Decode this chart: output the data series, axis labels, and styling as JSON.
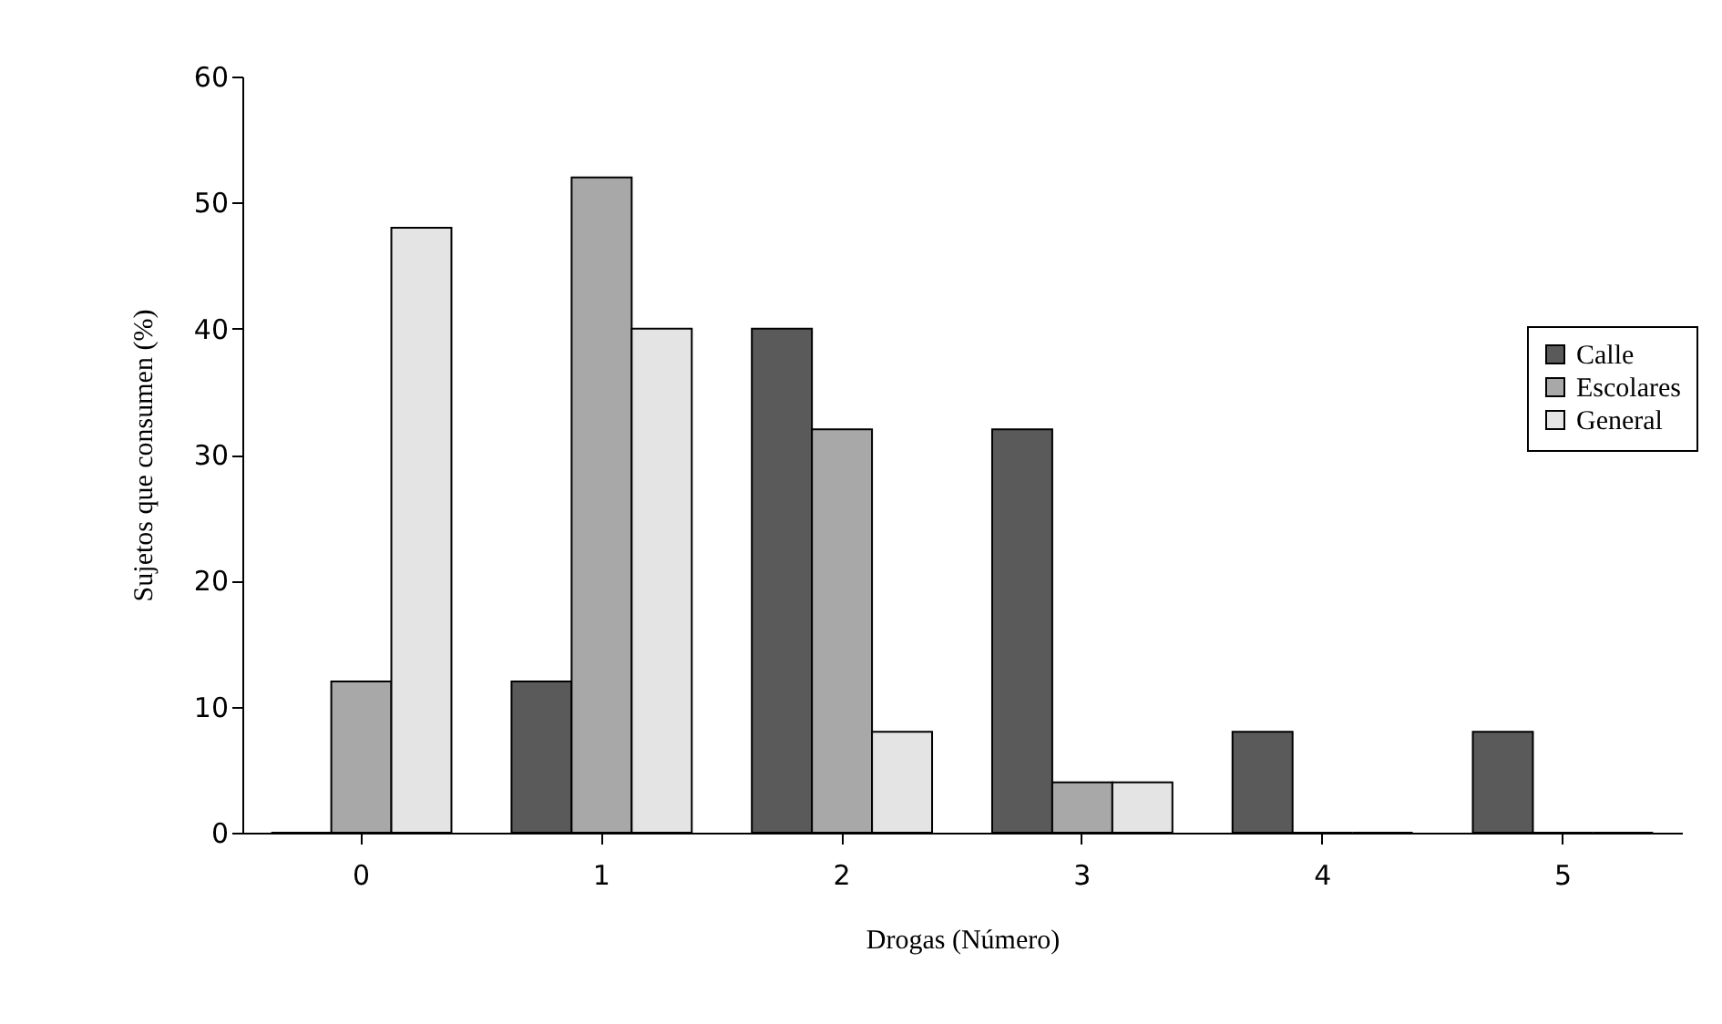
{
  "chart_data": {
    "type": "bar",
    "xlabel": "Drogas (Número)",
    "ylabel": "Sujetos que consumen (%)",
    "categories": [
      "0",
      "1",
      "2",
      "3",
      "4",
      "5"
    ],
    "series": [
      {
        "name": "Calle",
        "color": "#5a5a5a",
        "values": [
          0,
          12,
          40,
          32,
          8,
          8
        ]
      },
      {
        "name": "Escolares",
        "color": "#a8a8a8",
        "values": [
          12,
          52,
          32,
          4,
          0,
          0
        ]
      },
      {
        "name": "General",
        "color": "#e4e4e4",
        "values": [
          48,
          40,
          8,
          4,
          0,
          0
        ]
      }
    ],
    "ylim": [
      0,
      60
    ],
    "yticks": [
      0,
      10,
      20,
      30,
      40,
      50,
      60
    ],
    "legend": "right"
  }
}
